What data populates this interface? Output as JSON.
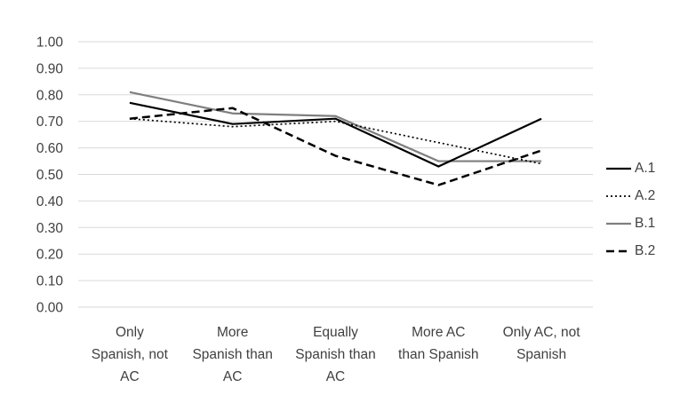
{
  "chart_data": {
    "type": "line",
    "title": "",
    "xlabel": "",
    "ylabel": "",
    "categories": [
      "Only Spanish, not AC",
      "More Spanish than AC",
      "Equally Spanish than AC",
      "More AC than Spanish",
      "Only AC, not Spanish"
    ],
    "category_label_lines": [
      [
        "Only",
        "Spanish, not",
        "AC"
      ],
      [
        "More",
        "Spanish than",
        "AC"
      ],
      [
        "Equally",
        "Spanish than",
        "AC"
      ],
      [
        "More AC",
        "than Spanish"
      ],
      [
        "Only AC, not",
        "Spanish"
      ]
    ],
    "series": [
      {
        "name": "A.1",
        "values": [
          0.77,
          0.69,
          0.71,
          0.53,
          0.71
        ],
        "color": "#000000",
        "dasharray": "",
        "width": 2.2
      },
      {
        "name": "A.2",
        "values": [
          0.71,
          0.68,
          0.7,
          0.62,
          0.54
        ],
        "color": "#000000",
        "dasharray": "2 3",
        "width": 1.7
      },
      {
        "name": "B.1",
        "values": [
          0.81,
          0.73,
          0.72,
          0.55,
          0.55
        ],
        "color": "#7f7f7f",
        "dasharray": "",
        "width": 2.2
      },
      {
        "name": "B.2",
        "values": [
          0.71,
          0.75,
          0.57,
          0.46,
          0.59
        ],
        "color": "#000000",
        "dasharray": "9 5",
        "width": 2.5
      }
    ],
    "legend_entries": [
      "A.1",
      "A.2",
      "B.1",
      "B.2"
    ],
    "legend_position": "right",
    "ylim": [
      0.0,
      1.0
    ],
    "y_ticks": [
      "1.00",
      "0.90",
      "0.80",
      "0.70",
      "0.60",
      "0.50",
      "0.40",
      "0.30",
      "0.20",
      "0.10",
      "0.00"
    ],
    "grid": true,
    "gridline_color": "#d9d9d9",
    "axis_text_color": "#404040",
    "series_draw_order": [
      2,
      3,
      1,
      0
    ]
  }
}
